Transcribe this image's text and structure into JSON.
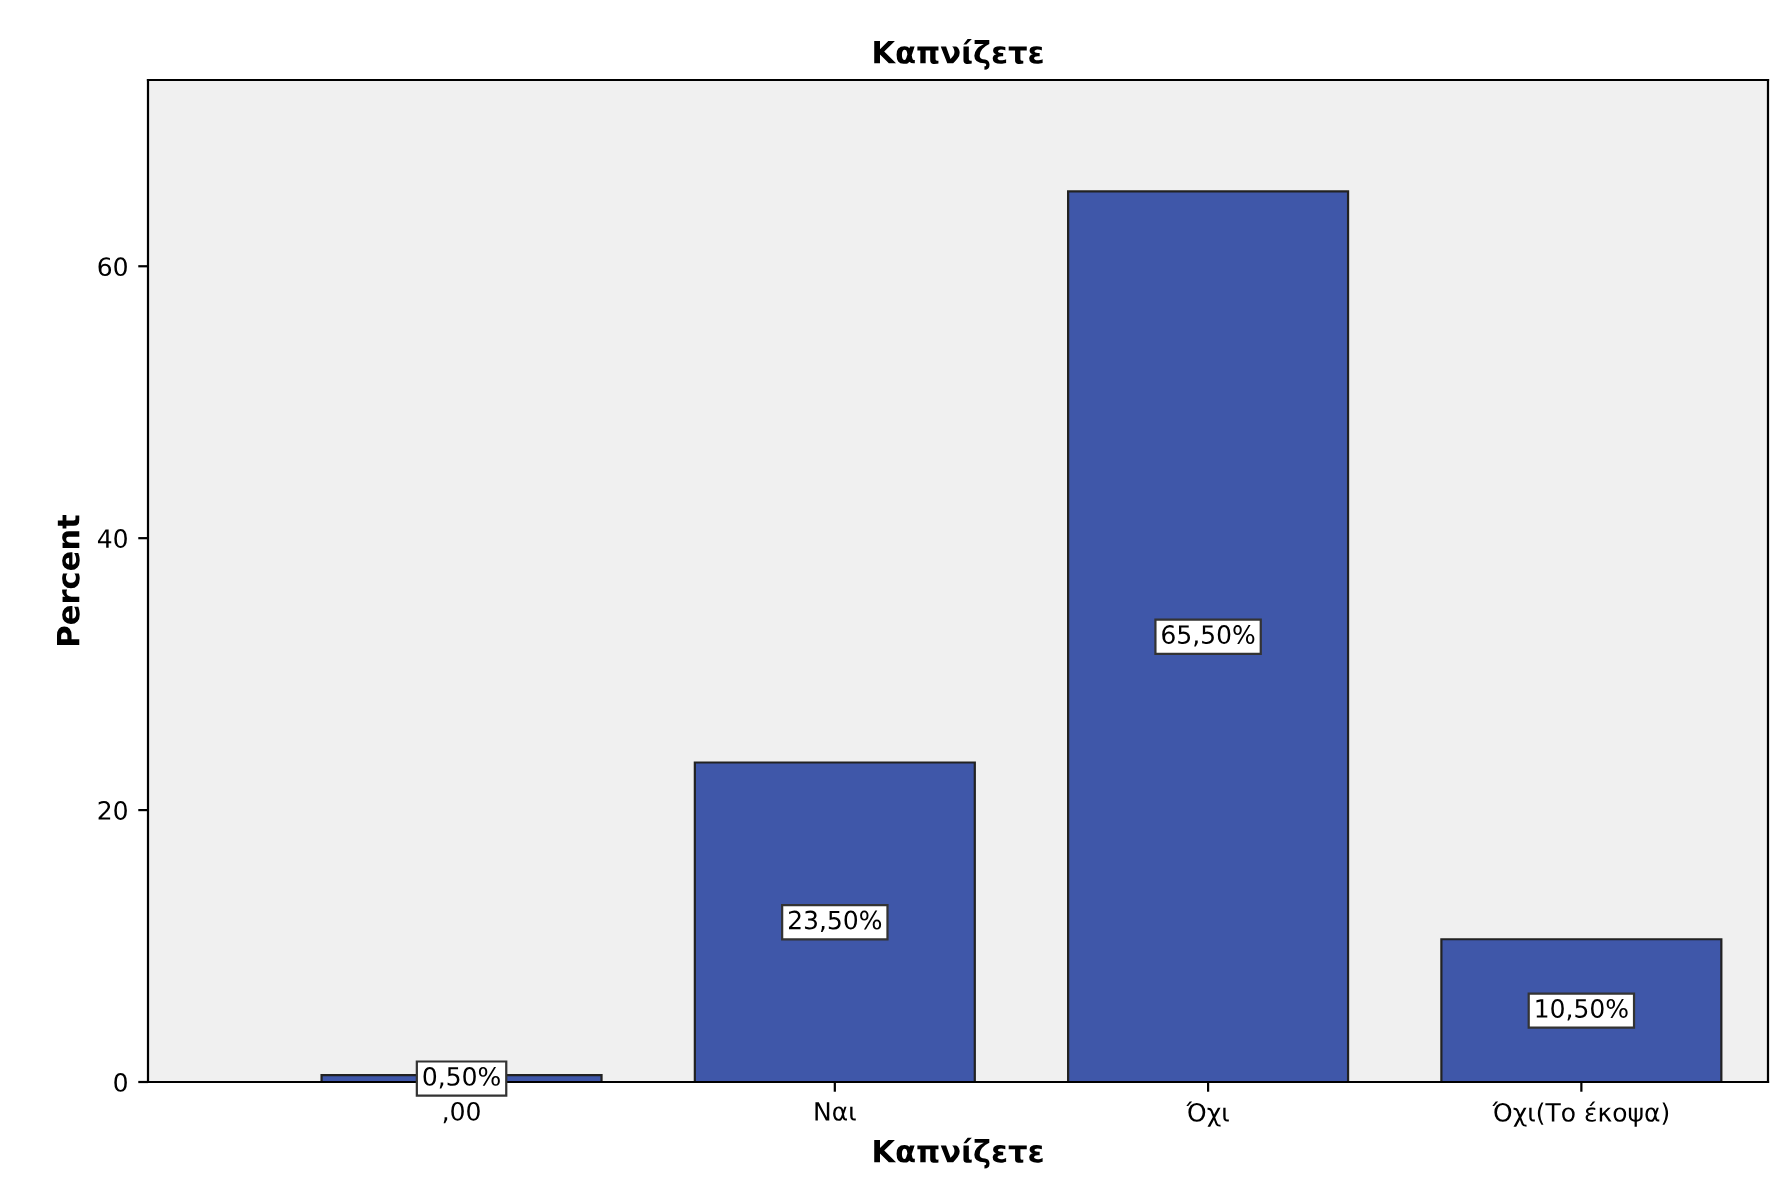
{
  "chart_data": {
    "type": "bar",
    "title": "Καπνίζετε",
    "xlabel": "Καπνίζετε",
    "ylabel": "Percent",
    "categories": [
      ",00",
      "Ναι",
      "Όχι",
      "Όχι(Το έκοψα)"
    ],
    "series": [
      {
        "color": "#3f57a9",
        "values": [
          0.5,
          23.5,
          65.5,
          10.5
        ],
        "value_labels": [
          "0,50%",
          "23,50%",
          "65,50%",
          "10,50%"
        ]
      }
    ],
    "ylim": [
      0,
      73.7
    ],
    "yticks": [
      0,
      20,
      40,
      60
    ],
    "grid": false,
    "legend": false
  }
}
